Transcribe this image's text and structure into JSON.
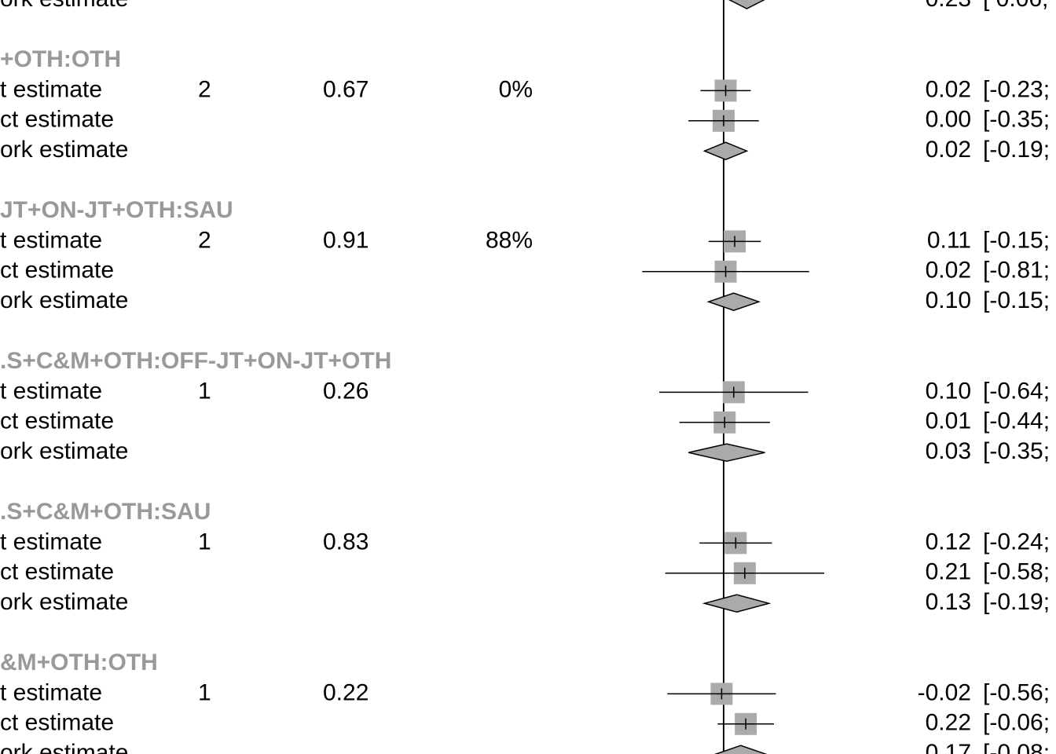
{
  "chart_data": {
    "type": "forest",
    "columns": [
      "estimate type",
      "k",
      "p",
      "I2",
      "effect",
      "CI"
    ],
    "reference_line": 0,
    "colors": {
      "box": "#aaaaaa",
      "diamond": "#aaaaaa",
      "header": "#999999",
      "line": "#000000"
    },
    "top_fragment": {
      "label": "ork estimate",
      "est_text": "0.23",
      "ci_text": "[ 0.06;",
      "est": 0.23,
      "lo": 0.06,
      "hi": 0.4
    },
    "groups": [
      {
        "header": "+OTH:OTH",
        "k": "2",
        "p": "0.67",
        "i2": "0%",
        "rows": [
          {
            "label": "t estimate",
            "kind": "box",
            "est": 0.02,
            "lo": -0.23,
            "hi": 0.27,
            "est_text": "0.02",
            "ci_text": "[-0.23;"
          },
          {
            "label": "ct estimate",
            "kind": "box",
            "est": 0.0,
            "lo": -0.35,
            "hi": 0.35,
            "est_text": "0.00",
            "ci_text": "[-0.35;"
          },
          {
            "label": "ork estimate",
            "kind": "diamond",
            "est": 0.02,
            "lo": -0.19,
            "hi": 0.23,
            "est_text": "0.02",
            "ci_text": "[-0.19;"
          }
        ]
      },
      {
        "header": "JT+ON-JT+OTH:SAU",
        "k": "2",
        "p": "0.91",
        "i2": "88%",
        "rows": [
          {
            "label": "t estimate",
            "kind": "box",
            "est": 0.11,
            "lo": -0.15,
            "hi": 0.37,
            "est_text": "0.11",
            "ci_text": "[-0.15;"
          },
          {
            "label": "ct estimate",
            "kind": "box",
            "est": 0.02,
            "lo": -0.81,
            "hi": 0.85,
            "est_text": "0.02",
            "ci_text": "[-0.81;"
          },
          {
            "label": "ork estimate",
            "kind": "diamond",
            "est": 0.1,
            "lo": -0.15,
            "hi": 0.35,
            "est_text": "0.10",
            "ci_text": "[-0.15;"
          }
        ]
      },
      {
        "header": ".S+C&M+OTH:OFF-JT+ON-JT+OTH",
        "k": "1",
        "p": "0.26",
        "i2": "",
        "rows": [
          {
            "label": "t estimate",
            "kind": "box",
            "est": 0.1,
            "lo": -0.64,
            "hi": 0.84,
            "est_text": "0.10",
            "ci_text": "[-0.64;"
          },
          {
            "label": "ct estimate",
            "kind": "box",
            "est": 0.01,
            "lo": -0.44,
            "hi": 0.46,
            "est_text": "0.01",
            "ci_text": "[-0.44;"
          },
          {
            "label": "ork estimate",
            "kind": "diamond",
            "est": 0.03,
            "lo": -0.35,
            "hi": 0.41,
            "est_text": "0.03",
            "ci_text": "[-0.35;"
          }
        ]
      },
      {
        "header": ".S+C&M+OTH:SAU",
        "k": "1",
        "p": "0.83",
        "i2": "",
        "rows": [
          {
            "label": "t estimate",
            "kind": "box",
            "est": 0.12,
            "lo": -0.24,
            "hi": 0.48,
            "est_text": "0.12",
            "ci_text": "[-0.24;"
          },
          {
            "label": "ct estimate",
            "kind": "box",
            "est": 0.21,
            "lo": -0.58,
            "hi": 1.0,
            "est_text": "0.21",
            "ci_text": "[-0.58;"
          },
          {
            "label": "ork estimate",
            "kind": "diamond",
            "est": 0.13,
            "lo": -0.19,
            "hi": 0.45,
            "est_text": "0.13",
            "ci_text": "[-0.19;"
          }
        ]
      },
      {
        "header": "&M+OTH:OTH",
        "k": "1",
        "p": "0.22",
        "i2": "",
        "rows": [
          {
            "label": "t estimate",
            "kind": "box",
            "est": -0.02,
            "lo": -0.56,
            "hi": 0.52,
            "est_text": "-0.02",
            "ci_text": "[-0.56;"
          },
          {
            "label": "ct estimate",
            "kind": "box",
            "est": 0.22,
            "lo": -0.06,
            "hi": 0.5,
            "est_text": "0.22",
            "ci_text": "[-0.06;"
          },
          {
            "label": "ork estimate",
            "kind": "diamond",
            "est": 0.17,
            "lo": -0.08,
            "hi": 0.42,
            "est_text": "0.17",
            "ci_text": "[-0.08;"
          }
        ]
      }
    ]
  }
}
